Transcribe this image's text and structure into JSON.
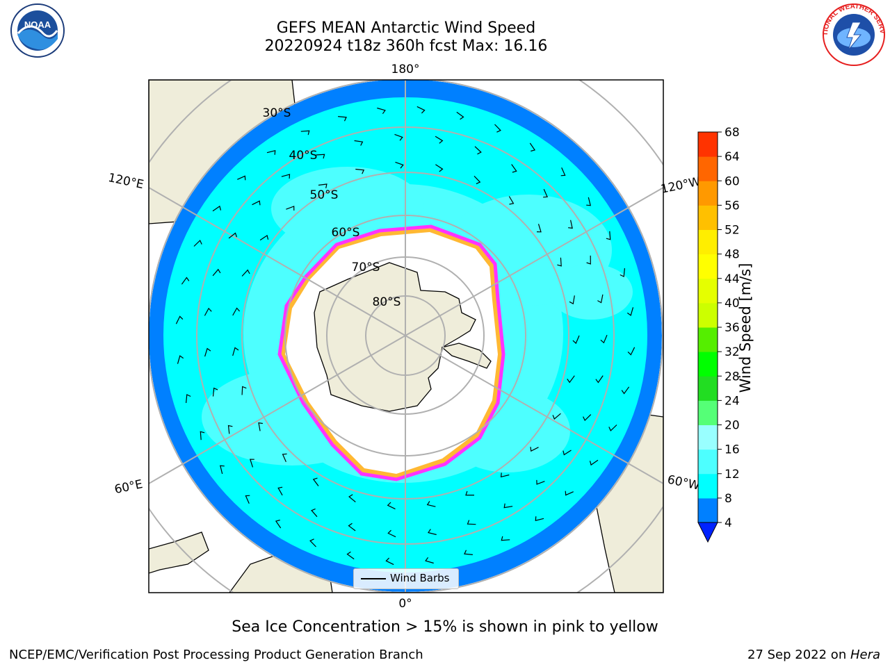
{
  "title": {
    "line1": "GEFS MEAN Antarctic Wind Speed",
    "line2": "20220924 t18z 360h fcst   Max: 16.16"
  },
  "map": {
    "projection": "south-polar-stereographic",
    "lon_labels": {
      "top": "180°",
      "bottom": "0°",
      "left_upper": "120°E",
      "left_lower": "60°E",
      "right_upper": "120°W",
      "right_lower": "60°W"
    },
    "lat_labels": [
      "30°S",
      "40°S",
      "50°S",
      "60°S",
      "70°S",
      "80°S"
    ],
    "colors": {
      "land": "#efedda",
      "ice": "#ffffff",
      "grid": "#b0b0b0",
      "sea_ice_edge": [
        "#ff33ff",
        "#ffb833"
      ]
    }
  },
  "legend": {
    "wind_barbs": "Wind Barbs"
  },
  "colorbar": {
    "label": "Wind Speed [m/s]",
    "ticks": [
      "4",
      "8",
      "12",
      "16",
      "20",
      "24",
      "28",
      "32",
      "36",
      "40",
      "44",
      "48",
      "52",
      "56",
      "60",
      "64",
      "68"
    ],
    "colors": [
      "#0080ff",
      "#00ffff",
      "#4dffff",
      "#99ffff",
      "#55ff77",
      "#22dd22",
      "#00ff00",
      "#55ee00",
      "#ccff00",
      "#e5ff00",
      "#ffff00",
      "#ffee00",
      "#ffc000",
      "#ff9900",
      "#ff6600",
      "#ff3300",
      "#ff0000"
    ],
    "extend_color": "#0022ff"
  },
  "logos": {
    "left": "NOAA",
    "right": "NATIONAL WEATHER SERVICE"
  },
  "notes": {
    "sea_ice": "Sea Ice Concentration > 15% is shown in pink to yellow",
    "producer": "NCEP/EMC/Verification Post Processing Product Generation Branch",
    "date_prefix": "27 Sep 2022 on ",
    "machine": "Hera"
  }
}
